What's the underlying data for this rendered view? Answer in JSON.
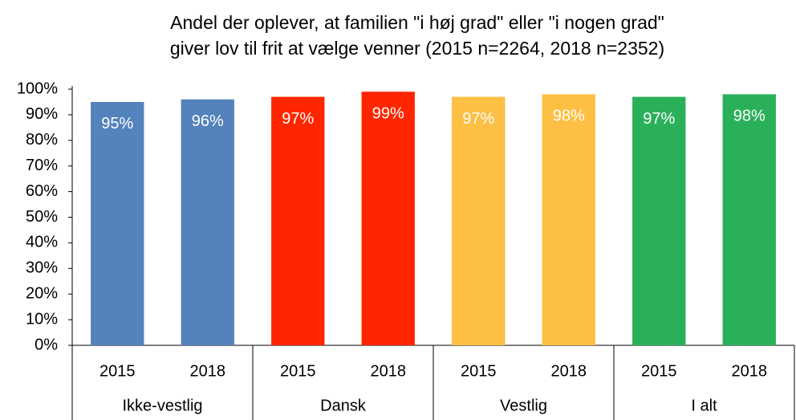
{
  "chart_data": {
    "type": "bar",
    "title": [
      "Andel der oplever, at familien \"i høj grad\" eller \"i nogen grad\"",
      "giver lov til frit at vælge venner (2015 n=2264, 2018 n=2352)"
    ],
    "groups": [
      {
        "name": "Ikke-vestlig",
        "color": "#5482bc",
        "categories": [
          "2015",
          "2018"
        ],
        "values": [
          95,
          96
        ],
        "value_labels": [
          "95%",
          "96%"
        ]
      },
      {
        "name": "Dansk",
        "color": "#ff2600",
        "categories": [
          "2015",
          "2018"
        ],
        "values": [
          97,
          99
        ],
        "value_labels": [
          "97%",
          "99%"
        ]
      },
      {
        "name": "Vestlig",
        "color": "#fdbf44",
        "categories": [
          "2015",
          "2018"
        ],
        "values": [
          97,
          98
        ],
        "value_labels": [
          "97%",
          "98%"
        ]
      },
      {
        "name": "I alt",
        "color": "#2bb05a",
        "categories": [
          "2015",
          "2018"
        ],
        "values": [
          97,
          98
        ],
        "value_labels": [
          "97%",
          "98%"
        ]
      }
    ],
    "ylim": [
      0,
      100
    ],
    "yticks": [
      {
        "value": 0,
        "label": "0%"
      },
      {
        "value": 10,
        "label": "10%"
      },
      {
        "value": 20,
        "label": "20%"
      },
      {
        "value": 30,
        "label": "30%"
      },
      {
        "value": 40,
        "label": "40%"
      },
      {
        "value": 50,
        "label": "50%"
      },
      {
        "value": 60,
        "label": "60%"
      },
      {
        "value": 70,
        "label": "70%"
      },
      {
        "value": 80,
        "label": "80%"
      },
      {
        "value": 90,
        "label": "90%"
      },
      {
        "value": 100,
        "label": "100%"
      }
    ],
    "grid": false
  }
}
